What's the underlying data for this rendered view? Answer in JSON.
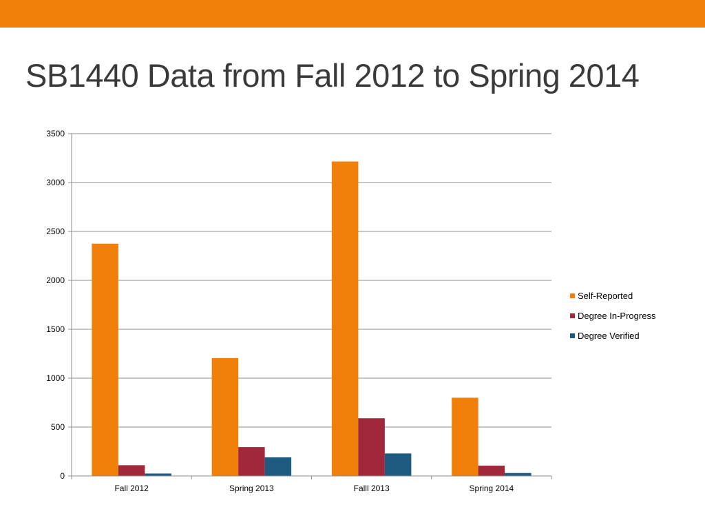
{
  "slide": {
    "title": "SB1440 Data from Fall 2012 to Spring 2014",
    "accent_color": "#F0800A"
  },
  "chart_data": {
    "type": "bar",
    "categories": [
      "Fall 2012",
      "Spring 2013",
      "Falll 2013",
      "Spring 2014"
    ],
    "series": [
      {
        "name": "Self-Reported",
        "color": "#F0800A",
        "values": [
          2375,
          1205,
          3215,
          800
        ]
      },
      {
        "name": "Degree In-Progress",
        "color": "#A0283A",
        "values": [
          110,
          295,
          590,
          105
        ]
      },
      {
        "name": "Degree Verified",
        "color": "#1F5B80",
        "values": [
          25,
          190,
          230,
          30
        ]
      }
    ],
    "ylim": [
      0,
      3500
    ],
    "yticks": [
      0,
      500,
      1000,
      1500,
      2000,
      2500,
      3000,
      3500
    ],
    "grid": true,
    "legend": "right"
  }
}
